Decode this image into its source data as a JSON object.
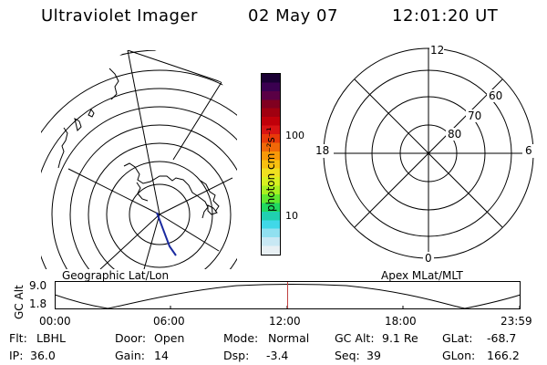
{
  "header": {
    "title": "Ultraviolet Imager",
    "date": "02 May 07",
    "time": "12:01:20 UT"
  },
  "geo_plot": {
    "caption": "Geographic Lat/Lon"
  },
  "colorbar": {
    "unit_label": "photon cm⁻²s⁻¹",
    "ticks": [
      "100",
      "10"
    ],
    "colors": [
      "#1a0033",
      "#3a0050",
      "#5a0045",
      "#800020",
      "#a00010",
      "#c0000a",
      "#d81414",
      "#e83a0a",
      "#f06808",
      "#f89808",
      "#f8c010",
      "#f0e020",
      "#d8f020",
      "#a8f020",
      "#60e830",
      "#20d860",
      "#20d0b0",
      "#40d8e8",
      "#90e0f0",
      "#c8e8f4",
      "#e8f0f4"
    ]
  },
  "polar_plot": {
    "caption": "Apex MLat/MLT",
    "mlt_labels": {
      "top": "12",
      "left": "18",
      "right": "6",
      "bottom": "0"
    },
    "lat_labels": [
      "60",
      "70",
      "80"
    ]
  },
  "timeline": {
    "ylabel": "GC Alt",
    "ymax": "9.0",
    "ymin": "1.8",
    "ticks": [
      "00:00",
      "06:00",
      "12:00",
      "18:00",
      "23:59"
    ],
    "current_marker_color": "#c04040"
  },
  "info": {
    "flt_label": "Flt:",
    "flt": "LBHL",
    "ip_label": "IP:",
    "ip": "36.0",
    "door_label": "Door:",
    "door": "Open",
    "gain_label": "Gain:",
    "gain": "14",
    "mode_label": "Mode:",
    "mode": "Normal",
    "dsp_label": "Dsp:",
    "dsp": "-3.4",
    "gcalt_label": "GC Alt:",
    "gcalt": "9.1 Re",
    "seq_label": "Seq:",
    "seq": "39",
    "glat_label": "GLat:",
    "glat": "-68.7",
    "glon_label": "GLon:",
    "glon": "166.2"
  }
}
